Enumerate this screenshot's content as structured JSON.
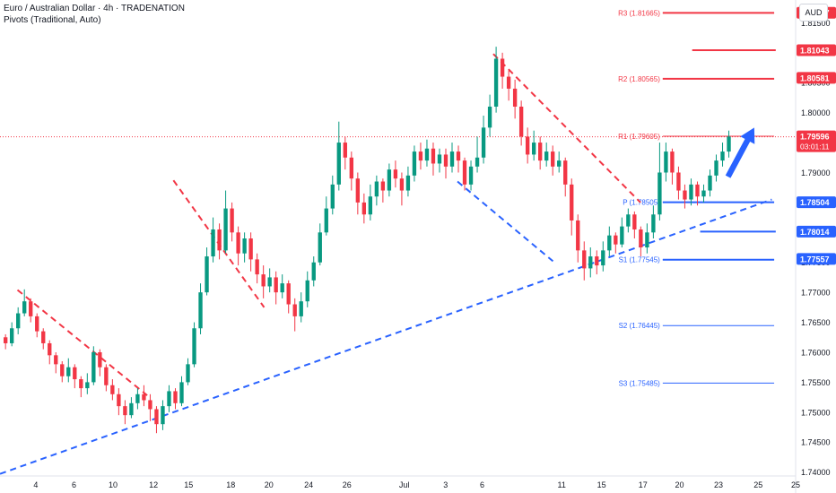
{
  "header": {
    "title": "Euro / Australian Dollar · 4h · TRADENATION",
    "indicator": "Pivots (Traditional, Auto)"
  },
  "currency_button": "AUD",
  "colors": {
    "up": "#089981",
    "down": "#f23645",
    "blue": "#2962ff",
    "red": "#f23645",
    "grid": "#f0f3fa",
    "text": "#131722"
  },
  "chart_data": {
    "type": "candlestick",
    "symbol": "EURAUD",
    "timeframe": "4h",
    "ylim": [
      1.7395,
      1.8188
    ],
    "x_range": [
      0,
      887
    ],
    "y_ticks": [
      "1.81500",
      "1.81000",
      "1.80500",
      "1.80000",
      "1.79500",
      "1.79000",
      "1.78500",
      "1.78000",
      "1.77500",
      "1.77000",
      "1.76500",
      "1.76000",
      "1.75500",
      "1.75000",
      "1.74500",
      "1.74000"
    ],
    "x_ticks": [
      {
        "label": "4",
        "x": 0.045
      },
      {
        "label": "6",
        "x": 0.093
      },
      {
        "label": "10",
        "x": 0.142
      },
      {
        "label": "12",
        "x": 0.193
      },
      {
        "label": "15",
        "x": 0.237
      },
      {
        "label": "18",
        "x": 0.29
      },
      {
        "label": "20",
        "x": 0.338
      },
      {
        "label": "24",
        "x": 0.388
      },
      {
        "label": "26",
        "x": 0.436
      },
      {
        "label": "Jul",
        "x": 0.508
      },
      {
        "label": "3",
        "x": 0.56
      },
      {
        "label": "6",
        "x": 0.606
      },
      {
        "label": "11",
        "x": 0.706
      },
      {
        "label": "15",
        "x": 0.756
      },
      {
        "label": "17",
        "x": 0.808
      },
      {
        "label": "20",
        "x": 0.854
      },
      {
        "label": "23",
        "x": 0.903
      },
      {
        "label": "25",
        "x": 0.953
      },
      {
        "label": "25",
        "x": 1.0
      }
    ],
    "price_labels": [
      {
        "text": "1.81667",
        "value": 1.81667,
        "color": "#f23645"
      },
      {
        "text": "1.81043",
        "value": 1.81043,
        "color": "#f23645"
      },
      {
        "text": "1.80581",
        "value": 1.80581,
        "color": "#f23645"
      },
      {
        "text": "1.79596",
        "value": 1.79596,
        "color": "#f23645",
        "sub": "03:01:11"
      },
      {
        "text": "1.78504",
        "value": 1.78504,
        "color": "#2962ff"
      },
      {
        "text": "1.78014",
        "value": 1.78014,
        "color": "#2962ff"
      },
      {
        "text": "1.77557",
        "value": 1.77557,
        "color": "#2962ff"
      }
    ],
    "pivots": [
      {
        "label": "R3 (1.81665)",
        "value": 1.81665,
        "color": "#f23645"
      },
      {
        "label": "R2 (1.80565)",
        "value": 1.80565,
        "color": "#f23645"
      },
      {
        "label": "R1 (1.79605)",
        "value": 1.79605,
        "color": "#f23645"
      },
      {
        "label": "P (1.78505)",
        "value": 1.78505,
        "color": "#2962ff"
      },
      {
        "label": "S1 (1.77545)",
        "value": 1.77545,
        "color": "#2962ff"
      },
      {
        "label": "S2 (1.76445)",
        "value": 1.76445,
        "color": "#2962ff"
      },
      {
        "label": "S3 (1.75485)",
        "value": 1.75485,
        "color": "#2962ff"
      }
    ],
    "levels": [
      {
        "value": 1.81043,
        "color": "#f23645",
        "x0": 0.87,
        "x1": 0.975
      },
      {
        "value": 1.78014,
        "color": "#2962ff",
        "x0": 0.88,
        "x1": 0.975
      }
    ],
    "current_price": 1.79596,
    "trendlines": [
      {
        "color": "#2962ff",
        "points": [
          [
            0,
            1.7397
          ],
          [
            0.97,
            1.7855
          ]
        ]
      },
      {
        "color": "#2962ff",
        "points": [
          [
            0.575,
            1.7885
          ],
          [
            0.695,
            1.7752
          ]
        ]
      },
      {
        "color": "#f23645",
        "points": [
          [
            0.022,
            1.7704
          ],
          [
            0.185,
            1.7528
          ]
        ]
      },
      {
        "color": "#f23645",
        "points": [
          [
            0.218,
            1.7887
          ],
          [
            0.332,
            1.7675
          ]
        ]
      },
      {
        "color": "#f23645",
        "points": [
          [
            0.62,
            1.8098
          ],
          [
            0.805,
            1.785
          ]
        ]
      }
    ],
    "arrow": {
      "color": "#2962ff",
      "from": [
        0.915,
        1.7893
      ],
      "to": [
        0.948,
        1.7975
      ]
    },
    "candles": [
      [
        1.7625,
        1.7615,
        1.763,
        1.7605
      ],
      [
        1.7615,
        1.764,
        1.765,
        1.761
      ],
      [
        1.764,
        1.7665,
        1.7675,
        1.763
      ],
      [
        1.7665,
        1.7685,
        1.7705,
        1.766
      ],
      [
        1.7685,
        1.766,
        1.769,
        1.765
      ],
      [
        1.766,
        1.7635,
        1.7665,
        1.7625
      ],
      [
        1.7635,
        1.7615,
        1.764,
        1.7605
      ],
      [
        1.7615,
        1.7595,
        1.762,
        1.758
      ],
      [
        1.7595,
        1.758,
        1.76,
        1.7565
      ],
      [
        1.758,
        1.756,
        1.7585,
        1.755
      ],
      [
        1.756,
        1.7575,
        1.759,
        1.755
      ],
      [
        1.7575,
        1.7555,
        1.758,
        1.754
      ],
      [
        1.7555,
        1.754,
        1.756,
        1.7525
      ],
      [
        1.754,
        1.755,
        1.7565,
        1.753
      ],
      [
        1.755,
        1.76,
        1.761,
        1.7545
      ],
      [
        1.76,
        1.7575,
        1.7605,
        1.756
      ],
      [
        1.7575,
        1.7545,
        1.758,
        1.7535
      ],
      [
        1.7545,
        1.753,
        1.7555,
        1.752
      ],
      [
        1.753,
        1.751,
        1.754,
        1.7495
      ],
      [
        1.751,
        1.7495,
        1.752,
        1.748
      ],
      [
        1.7495,
        1.7515,
        1.7525,
        1.749
      ],
      [
        1.7515,
        1.753,
        1.754,
        1.7505
      ],
      [
        1.753,
        1.752,
        1.7545,
        1.751
      ],
      [
        1.752,
        1.7505,
        1.753,
        1.7485
      ],
      [
        1.7505,
        1.748,
        1.751,
        1.7465
      ],
      [
        1.748,
        1.751,
        1.752,
        1.747
      ],
      [
        1.751,
        1.7535,
        1.7545,
        1.75
      ],
      [
        1.7535,
        1.7515,
        1.754,
        1.7505
      ],
      [
        1.7515,
        1.755,
        1.756,
        1.751
      ],
      [
        1.755,
        1.758,
        1.759,
        1.7545
      ],
      [
        1.758,
        1.764,
        1.765,
        1.7575
      ],
      [
        1.764,
        1.77,
        1.7715,
        1.763
      ],
      [
        1.77,
        1.776,
        1.7775,
        1.7695
      ],
      [
        1.776,
        1.7805,
        1.7825,
        1.775
      ],
      [
        1.7805,
        1.777,
        1.7815,
        1.7755
      ],
      [
        1.777,
        1.784,
        1.787,
        1.7765
      ],
      [
        1.784,
        1.78,
        1.785,
        1.7785
      ],
      [
        1.78,
        1.7765,
        1.781,
        1.7745
      ],
      [
        1.7765,
        1.779,
        1.78,
        1.775
      ],
      [
        1.779,
        1.7755,
        1.78,
        1.7735
      ],
      [
        1.7755,
        1.773,
        1.7765,
        1.7715
      ],
      [
        1.773,
        1.771,
        1.7745,
        1.769
      ],
      [
        1.771,
        1.7725,
        1.774,
        1.77
      ],
      [
        1.7725,
        1.77,
        1.7735,
        1.768
      ],
      [
        1.77,
        1.7715,
        1.773,
        1.769
      ],
      [
        1.7715,
        1.768,
        1.772,
        1.7665
      ],
      [
        1.768,
        1.766,
        1.769,
        1.7635
      ],
      [
        1.766,
        1.7685,
        1.77,
        1.765
      ],
      [
        1.7685,
        1.772,
        1.7735,
        1.7675
      ],
      [
        1.772,
        1.775,
        1.776,
        1.771
      ],
      [
        1.775,
        1.78,
        1.7815,
        1.7745
      ],
      [
        1.78,
        1.784,
        1.786,
        1.7795
      ],
      [
        1.784,
        1.788,
        1.7895,
        1.783
      ],
      [
        1.788,
        1.795,
        1.7985,
        1.787
      ],
      [
        1.795,
        1.7925,
        1.796,
        1.7905
      ],
      [
        1.7925,
        1.789,
        1.7935,
        1.787
      ],
      [
        1.789,
        1.785,
        1.79,
        1.783
      ],
      [
        1.785,
        1.783,
        1.7865,
        1.7815
      ],
      [
        1.783,
        1.786,
        1.788,
        1.782
      ],
      [
        1.786,
        1.7885,
        1.7895,
        1.7845
      ],
      [
        1.7885,
        1.787,
        1.789,
        1.785
      ],
      [
        1.787,
        1.7905,
        1.7915,
        1.786
      ],
      [
        1.7905,
        1.789,
        1.792,
        1.7875
      ],
      [
        1.789,
        1.787,
        1.79,
        1.7845
      ],
      [
        1.787,
        1.7895,
        1.791,
        1.786
      ],
      [
        1.7895,
        1.7935,
        1.7945,
        1.7885
      ],
      [
        1.7935,
        1.792,
        1.795,
        1.7905
      ],
      [
        1.792,
        1.794,
        1.7955,
        1.791
      ],
      [
        1.794,
        1.7915,
        1.795,
        1.7895
      ],
      [
        1.7915,
        1.793,
        1.794,
        1.79
      ],
      [
        1.793,
        1.791,
        1.794,
        1.789
      ],
      [
        1.791,
        1.7935,
        1.795,
        1.79
      ],
      [
        1.7935,
        1.792,
        1.7945,
        1.79
      ],
      [
        1.792,
        1.788,
        1.7925,
        1.787
      ],
      [
        1.788,
        1.791,
        1.792,
        1.787
      ],
      [
        1.791,
        1.7925,
        1.796,
        1.79
      ],
      [
        1.7925,
        1.7975,
        1.7995,
        1.7915
      ],
      [
        1.7975,
        1.801,
        1.803,
        1.796
      ],
      [
        1.801,
        1.809,
        1.811,
        1.8
      ],
      [
        1.809,
        1.806,
        1.81,
        1.804
      ],
      [
        1.806,
        1.804,
        1.807,
        1.802
      ],
      [
        1.804,
        1.801,
        1.8055,
        1.799
      ],
      [
        1.801,
        1.796,
        1.802,
        1.7945
      ],
      [
        1.796,
        1.793,
        1.7975,
        1.7915
      ],
      [
        1.793,
        1.795,
        1.797,
        1.792
      ],
      [
        1.795,
        1.792,
        1.796,
        1.7905
      ],
      [
        1.792,
        1.7935,
        1.795,
        1.791
      ],
      [
        1.7935,
        1.791,
        1.7945,
        1.7895
      ],
      [
        1.791,
        1.792,
        1.7935,
        1.79
      ],
      [
        1.792,
        1.788,
        1.7925,
        1.786
      ],
      [
        1.788,
        1.782,
        1.789,
        1.7795
      ],
      [
        1.782,
        1.777,
        1.783,
        1.775
      ],
      [
        1.777,
        1.774,
        1.7785,
        1.772
      ],
      [
        1.774,
        1.776,
        1.7775,
        1.7725
      ],
      [
        1.776,
        1.7745,
        1.777,
        1.773
      ],
      [
        1.7745,
        1.777,
        1.7785,
        1.7735
      ],
      [
        1.777,
        1.7795,
        1.781,
        1.776
      ],
      [
        1.7795,
        1.778,
        1.78,
        1.7765
      ],
      [
        1.778,
        1.781,
        1.7825,
        1.7775
      ],
      [
        1.781,
        1.783,
        1.784,
        1.78
      ],
      [
        1.783,
        1.7805,
        1.7835,
        1.779
      ],
      [
        1.7805,
        1.7775,
        1.781,
        1.776
      ],
      [
        1.7775,
        1.78,
        1.7815,
        1.7765
      ],
      [
        1.78,
        1.783,
        1.7845,
        1.779
      ],
      [
        1.783,
        1.79,
        1.795,
        1.782
      ],
      [
        1.79,
        1.7935,
        1.795,
        1.7885
      ],
      [
        1.7935,
        1.79,
        1.794,
        1.788
      ],
      [
        1.79,
        1.787,
        1.791,
        1.7855
      ],
      [
        1.787,
        1.7855,
        1.788,
        1.784
      ],
      [
        1.7855,
        1.788,
        1.789,
        1.7845
      ],
      [
        1.788,
        1.786,
        1.7885,
        1.7845
      ],
      [
        1.786,
        1.787,
        1.788,
        1.785
      ],
      [
        1.787,
        1.7895,
        1.7905,
        1.786
      ],
      [
        1.7895,
        1.792,
        1.793,
        1.7885
      ],
      [
        1.792,
        1.7935,
        1.795,
        1.791
      ],
      [
        1.7935,
        1.796,
        1.797,
        1.7925
      ]
    ]
  }
}
